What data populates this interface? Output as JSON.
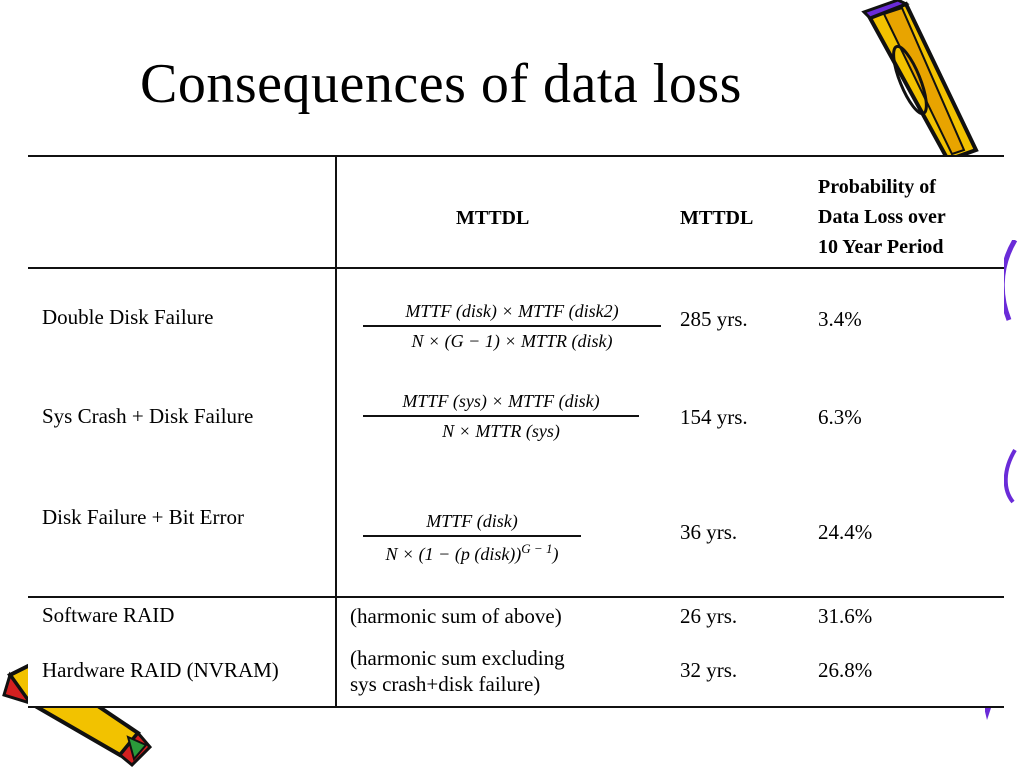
{
  "title": "Consequences of data loss",
  "colors": {
    "pencil_body": "#f2c200",
    "pencil_outline": "#111111",
    "pencil_tip": "#d42020",
    "arc": "#6a2bd8"
  },
  "icons": {
    "top_decoration": "pencil-icon",
    "bottom_decoration": "pencil-icon"
  },
  "table": {
    "headers": {
      "formula": "MTTDL",
      "mttdl": "MTTDL",
      "probability": [
        "Probability of",
        "Data Loss over",
        "10 Year Period"
      ]
    },
    "rows": [
      {
        "label": "Double Disk Failure",
        "formula_num": "MTTF (disk) × MTTF (disk2)",
        "formula_den": "N × (G − 1) × MTTR (disk)",
        "mttdl": "285 yrs.",
        "prob": "3.4%"
      },
      {
        "label": "Sys Crash + Disk Failure",
        "formula_num": "MTTF (sys) × MTTF (disk)",
        "formula_den": "N × MTTR (sys)",
        "mttdl": "154 yrs.",
        "prob": "6.3%"
      },
      {
        "label": "Disk Failure + Bit Error",
        "formula_num": "MTTF (disk)",
        "formula_den_base": "N × (1 − (p (disk))",
        "formula_den_exp": "G − 1",
        "formula_den_tail": ")",
        "mttdl": "36 yrs.",
        "prob": "24.4%"
      },
      {
        "label": "Software RAID",
        "formula_text": "(harmonic sum of above)",
        "mttdl": "26 yrs.",
        "prob": "31.6%"
      },
      {
        "label": "Hardware RAID (NVRAM)",
        "formula_text_1": "(harmonic sum excluding",
        "formula_text_2": "sys crash+disk failure)",
        "mttdl": "32 yrs.",
        "prob": "26.8%"
      }
    ]
  }
}
